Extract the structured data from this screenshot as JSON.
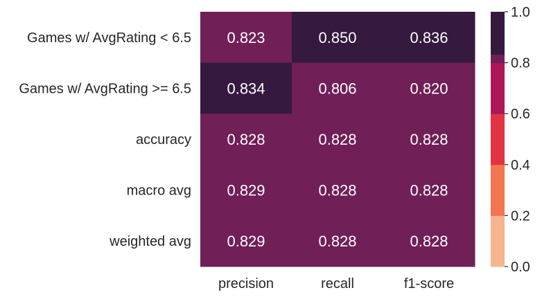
{
  "chart_data": {
    "type": "heatmap",
    "title": "",
    "xlabel": "",
    "ylabel": "",
    "rows": [
      "Games w/ AvgRating < 6.5",
      "Games w/ AvgRating >= 6.5",
      "accuracy",
      "macro avg",
      "weighted avg"
    ],
    "columns": [
      "precision",
      "recall",
      "f1-score"
    ],
    "values": [
      [
        0.823,
        0.85,
        0.836
      ],
      [
        0.834,
        0.806,
        0.82
      ],
      [
        0.828,
        0.828,
        0.828
      ],
      [
        0.829,
        0.828,
        0.828
      ],
      [
        0.829,
        0.828,
        0.828
      ]
    ],
    "labels": [
      [
        "0.823",
        "0.850",
        "0.836"
      ],
      [
        "0.834",
        "0.806",
        "0.820"
      ],
      [
        "0.828",
        "0.828",
        "0.828"
      ],
      [
        "0.829",
        "0.828",
        "0.828"
      ],
      [
        "0.829",
        "0.828",
        "0.828"
      ]
    ],
    "colorbar": {
      "range": [
        0,
        1
      ],
      "ticks": [
        "0.0",
        "0.2",
        "0.4",
        "0.6",
        "0.8",
        "1.0"
      ],
      "bins": [
        {
          "from": 0.0,
          "to": 0.2,
          "color": "#f6b48f"
        },
        {
          "from": 0.2,
          "to": 0.4,
          "color": "#f37651"
        },
        {
          "from": 0.4,
          "to": 0.6,
          "color": "#e13342"
        },
        {
          "from": 0.6,
          "to": 0.8,
          "color": "#ad1759"
        },
        {
          "from": 0.8,
          "to": 0.833,
          "color": "#701f57"
        },
        {
          "from": 0.833,
          "to": 1.0,
          "color": "#35193e"
        }
      ]
    },
    "grid": false,
    "legend": "right"
  }
}
